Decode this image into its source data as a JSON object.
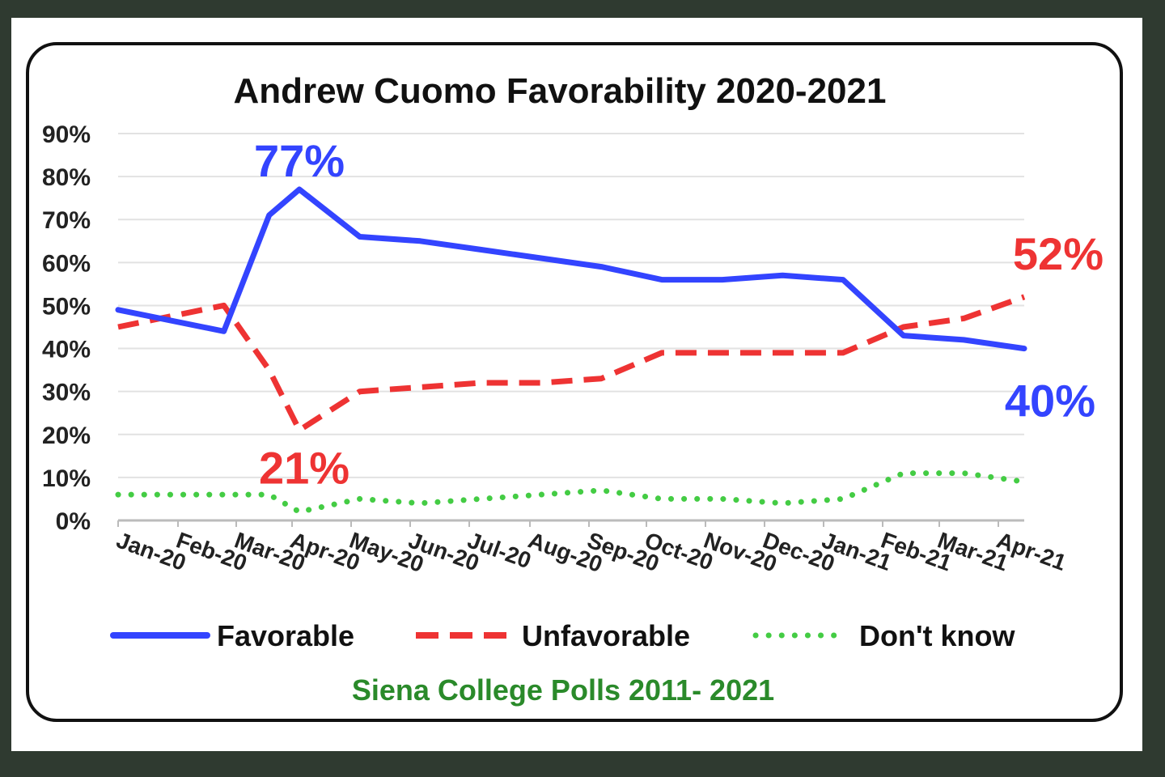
{
  "chart_data": {
    "type": "line",
    "title": "Andrew Cuomo Favorability 2020-2021",
    "source": "Siena College Polls 2011- 2021",
    "categories": [
      "Jan-20",
      "Feb-20",
      "Mar-20",
      "Apr-20",
      "May-20",
      "Jun-20",
      "Jul-20",
      "Aug-20",
      "Sep-20",
      "Oct-20",
      "Nov-20",
      "Dec-20",
      "Jan-21",
      "Feb-21",
      "Mar-21",
      "Apr-21"
    ],
    "x_positions": [
      0,
      1.75,
      2.5,
      3,
      4,
      5,
      6,
      7,
      8,
      9,
      10,
      11,
      12,
      13,
      14,
      15
    ],
    "y_ticks": [
      "0%",
      "10%",
      "20%",
      "30%",
      "40%",
      "50%",
      "60%",
      "70%",
      "80%",
      "90%"
    ],
    "ylim": [
      0,
      90
    ],
    "grid": true,
    "legend_position": "bottom",
    "series": [
      {
        "name": "Favorable",
        "color": "#3344ff",
        "style": "solid",
        "values": [
          49,
          44,
          71,
          77,
          66,
          65,
          63,
          61,
          59,
          56,
          56,
          57,
          56,
          43,
          42,
          40
        ]
      },
      {
        "name": "Unfavorable",
        "color": "#ee3333",
        "style": "dashed",
        "values": [
          45,
          50,
          35,
          21,
          30,
          31,
          32,
          32,
          33,
          39,
          39,
          39,
          39,
          45,
          47,
          52
        ]
      },
      {
        "name": "Don't know",
        "color": "#44cc44",
        "style": "dotted",
        "values": [
          6,
          6,
          6,
          2,
          5,
          4,
          5,
          6,
          7,
          5,
          5,
          4,
          5,
          11,
          11,
          9
        ]
      }
    ],
    "annotations": [
      {
        "text": "77%",
        "color": "#3344ff",
        "x": 3,
        "y": 77,
        "anchor": "above"
      },
      {
        "text": "21%",
        "color": "#ee3333",
        "x": 3,
        "y": 21,
        "anchor": "below"
      },
      {
        "text": "52%",
        "color": "#ee3333",
        "x": 15,
        "y": 52,
        "anchor": "above-right"
      },
      {
        "text": "40%",
        "color": "#3344ff",
        "x": 15,
        "y": 40,
        "anchor": "below-right"
      }
    ]
  }
}
